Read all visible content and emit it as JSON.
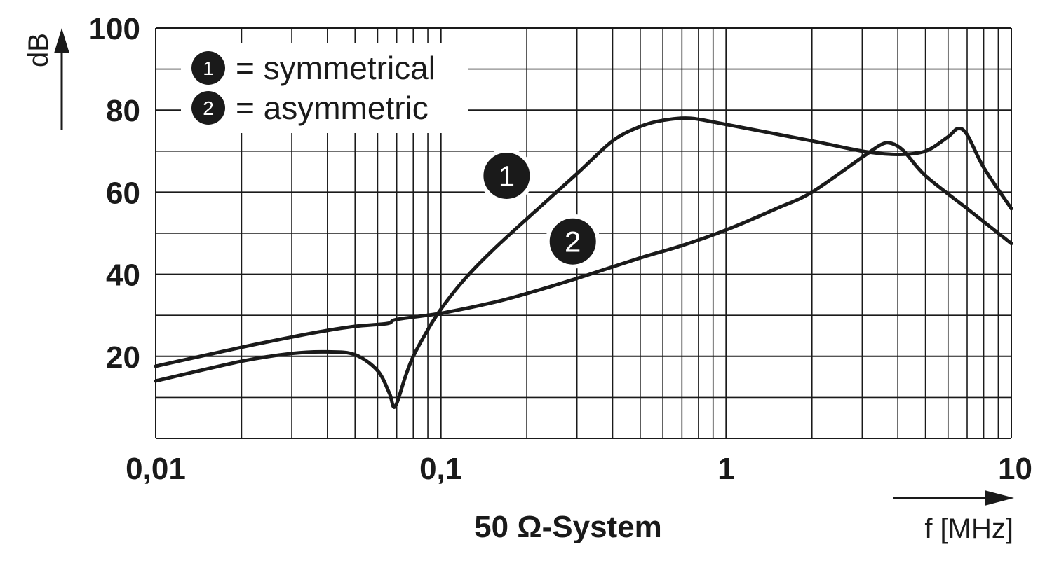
{
  "chart_data": {
    "type": "line",
    "title": "",
    "subtitle": "50 Ω-System",
    "xlabel": "f [MHz]",
    "ylabel": "dB",
    "xscale": "log",
    "xlim": [
      0.01,
      10
    ],
    "ylim": [
      0,
      100
    ],
    "x_ticks": [
      {
        "value": 0.01,
        "label": "0,01"
      },
      {
        "value": 0.1,
        "label": "0,1"
      },
      {
        "value": 1,
        "label": "1"
      },
      {
        "value": 10,
        "label": "10"
      }
    ],
    "y_ticks": [
      {
        "value": 20,
        "label": "20"
      },
      {
        "value": 40,
        "label": "40"
      },
      {
        "value": 60,
        "label": "60"
      },
      {
        "value": 80,
        "label": "80"
      },
      {
        "value": 100,
        "label": "100"
      }
    ],
    "grid": true,
    "legend_position": "top-left",
    "series": [
      {
        "name": "symmetrical",
        "marker": "1",
        "points": [
          [
            0.01,
            14.0
          ],
          [
            0.02,
            18.8
          ],
          [
            0.03,
            20.7
          ],
          [
            0.04,
            21.1
          ],
          [
            0.05,
            20.4
          ],
          [
            0.06,
            16.5
          ],
          [
            0.066,
            11.0
          ],
          [
            0.069,
            7.7
          ],
          [
            0.075,
            15.0
          ],
          [
            0.08,
            20.0
          ],
          [
            0.09,
            26.5
          ],
          [
            0.1,
            31.5
          ],
          [
            0.12,
            38.5
          ],
          [
            0.15,
            45.5
          ],
          [
            0.2,
            53.5
          ],
          [
            0.3,
            64.5
          ],
          [
            0.4,
            72.5
          ],
          [
            0.5,
            76.0
          ],
          [
            0.6,
            77.5
          ],
          [
            0.75,
            78.0
          ],
          [
            1.0,
            76.5
          ],
          [
            2.0,
            72.5
          ],
          [
            3.0,
            70.0
          ],
          [
            4.0,
            69.2
          ],
          [
            5.0,
            70.0
          ],
          [
            6.0,
            73.5
          ],
          [
            6.5,
            75.5
          ],
          [
            7.0,
            74.0
          ],
          [
            8.0,
            66.0
          ],
          [
            10.0,
            56.0
          ]
        ]
      },
      {
        "name": "asymmetric",
        "marker": "2",
        "points": [
          [
            0.01,
            17.6
          ],
          [
            0.02,
            22.2
          ],
          [
            0.03,
            24.7
          ],
          [
            0.04,
            26.3
          ],
          [
            0.05,
            27.3
          ],
          [
            0.065,
            28.0
          ],
          [
            0.07,
            29.0
          ],
          [
            0.1,
            30.5
          ],
          [
            0.15,
            33.0
          ],
          [
            0.2,
            35.3
          ],
          [
            0.3,
            39.0
          ],
          [
            0.5,
            44.0
          ],
          [
            0.7,
            47.0
          ],
          [
            1.0,
            50.8
          ],
          [
            1.5,
            56.0
          ],
          [
            2.0,
            60.0
          ],
          [
            3.0,
            68.5
          ],
          [
            3.5,
            71.6
          ],
          [
            3.8,
            71.9
          ],
          [
            4.2,
            70.0
          ],
          [
            5.0,
            64.0
          ],
          [
            7.0,
            56.0
          ],
          [
            10.0,
            47.5
          ]
        ],
        "interpolate_from_index": 0
      }
    ],
    "legend": [
      {
        "marker": "1",
        "label": "= symmetrical"
      },
      {
        "marker": "2",
        "label": "= asymmetric"
      }
    ],
    "annotations": [
      {
        "marker": "1",
        "x": 0.17,
        "y": 64
      },
      {
        "marker": "2",
        "x": 0.29,
        "y": 48
      }
    ]
  }
}
